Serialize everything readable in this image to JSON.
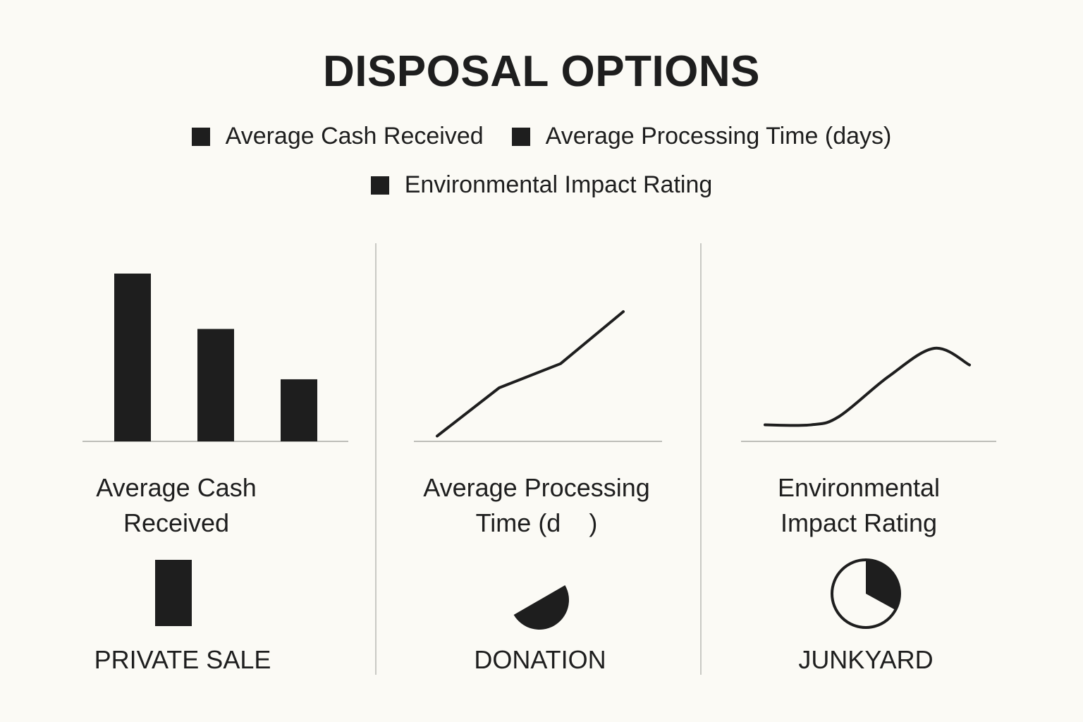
{
  "title": "DISPOSAL OPTIONS",
  "legend": [
    "Average Cash Received",
    "Average Processing Time (days)",
    "Environmental Impact Rating"
  ],
  "colors": {
    "ink": "#1e1e1e",
    "background": "#fbfaf5",
    "divider": "#c9c9c4"
  },
  "panels": [
    {
      "label": "Average Cash Received"
    },
    {
      "label": "Average Processing Time (d    )"
    },
    {
      "label": "Environmental Impact Rating"
    }
  ],
  "options": [
    {
      "label": "PRIVATE SALE"
    },
    {
      "label": "DONATION"
    },
    {
      "label": "JUNKYARD"
    }
  ],
  "chart_data": [
    {
      "type": "bar",
      "series_ref": "Average Cash Received",
      "values": [
        100,
        67,
        37
      ],
      "ylim": [
        0,
        100
      ]
    },
    {
      "type": "line",
      "series_ref": "Average Processing Time (days)",
      "x": [
        0,
        1,
        2,
        3
      ],
      "values": [
        2,
        40,
        59,
        100
      ],
      "ylim": [
        0,
        100
      ]
    },
    {
      "type": "line",
      "smooth": true,
      "series_ref": "Environmental Impact Rating",
      "values": [
        8,
        8,
        18,
        66,
        100,
        80
      ],
      "ylim": [
        0,
        100
      ]
    }
  ],
  "option_icons": [
    {
      "option": "PRIVATE SALE",
      "shape": "filled-rectangle-icon"
    },
    {
      "option": "DONATION",
      "shape": "half-disc-icon",
      "fill_fraction": 0.5
    },
    {
      "option": "JUNKYARD",
      "shape": "pie-icon",
      "fill_fraction": 0.33
    }
  ]
}
